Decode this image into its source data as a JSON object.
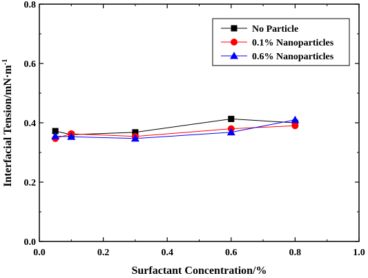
{
  "chart_data": {
    "type": "line",
    "xlabel": "Surfactant Concentration/%",
    "ylabel": "Interfacial Tension/mN·m",
    "ylabel_superscript": "-1",
    "xlim": [
      0.0,
      1.0
    ],
    "ylim": [
      0.0,
      0.8
    ],
    "xticks": [
      "0.0",
      "0.2",
      "0.4",
      "0.6",
      "0.8",
      "1.0"
    ],
    "yticks": [
      "0.0",
      "0.2",
      "0.4",
      "0.6",
      "0.8"
    ],
    "grid": false,
    "legend_position": "top-right",
    "series": [
      {
        "name": "No Particle",
        "color": "#000000",
        "marker": "square",
        "x": [
          0.05,
          0.1,
          0.3,
          0.6,
          0.8
        ],
        "y": [
          0.372,
          0.36,
          0.368,
          0.413,
          0.4
        ]
      },
      {
        "name": "0.1% Nanoparticles",
        "color": "#ff0000",
        "marker": "circle",
        "x": [
          0.05,
          0.1,
          0.3,
          0.6,
          0.8
        ],
        "y": [
          0.347,
          0.363,
          0.354,
          0.38,
          0.39
        ]
      },
      {
        "name": "0.6% Nanoparticles",
        "color": "#0000ff",
        "marker": "triangle",
        "x": [
          0.05,
          0.1,
          0.3,
          0.6,
          0.8
        ],
        "y": [
          0.355,
          0.353,
          0.347,
          0.368,
          0.41
        ]
      }
    ]
  }
}
